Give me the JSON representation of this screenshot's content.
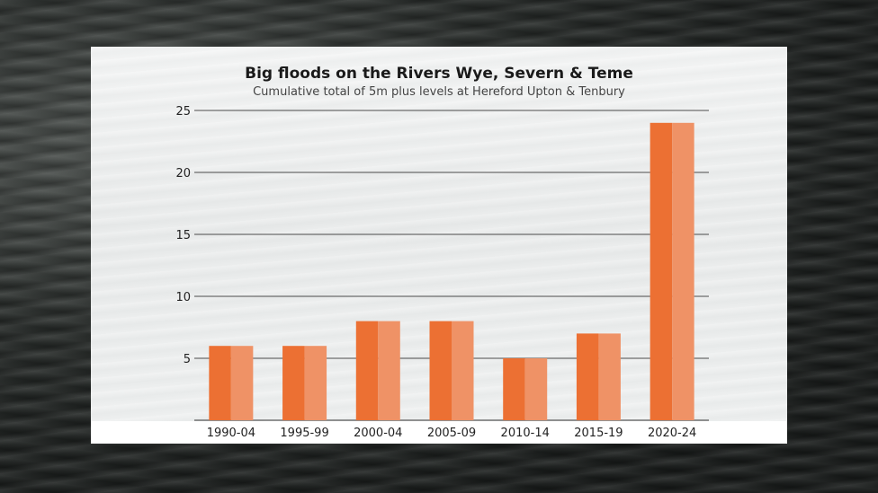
{
  "chart_data": {
    "type": "bar",
    "title": "Big floods on the Rivers Wye, Severn & Teme",
    "subtitle": "Cumulative total of 5m plus levels at Hereford Upton & Tenbury",
    "categories": [
      "1990-04",
      "1995-99",
      "2000-04",
      "2005-09",
      "2010-14",
      "2015-19",
      "2020-24"
    ],
    "values": [
      6,
      6,
      8,
      8,
      5,
      7,
      24
    ],
    "ylim": [
      0,
      25
    ],
    "yticks": [
      5,
      10,
      15,
      20,
      25
    ],
    "xlabel": "",
    "ylabel": "",
    "grid": true,
    "colors": {
      "bar_dark": "#ec7033",
      "bar_light": "#ef9266",
      "grid": "#4a4a4a",
      "axis": "#333333"
    }
  }
}
